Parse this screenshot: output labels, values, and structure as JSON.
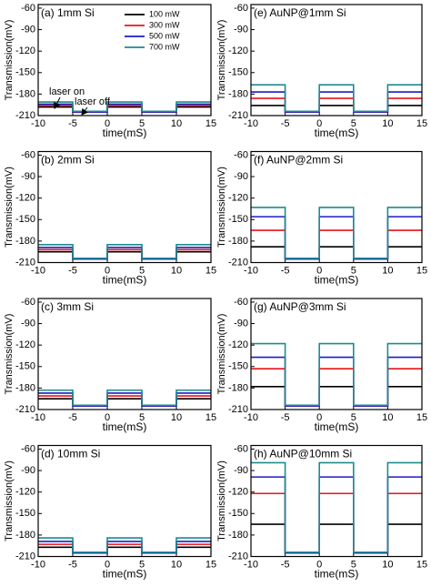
{
  "chart_data": [
    {
      "type": "line",
      "title": "(a) 1mm Si",
      "xlabel": "time(mS)",
      "ylabel": "Transmission(mV)",
      "legend": true,
      "annotations": [
        "laser on",
        "laser off"
      ],
      "x": [
        -10,
        -5,
        -5,
        0,
        0,
        5,
        5,
        10,
        10,
        15
      ],
      "xlim": [
        -10,
        15
      ],
      "ylim": [
        -210,
        -55
      ],
      "xticks": [
        -10,
        -5,
        0,
        5,
        10,
        15
      ],
      "yticks": [
        -60,
        -90,
        -120,
        -150,
        -180,
        -210
      ],
      "series": [
        {
          "name": "100 mW",
          "color": "#000000",
          "values": [
            -198,
            -198,
            -205,
            -205,
            -198,
            -198,
            -205,
            -205,
            -198,
            -198
          ]
        },
        {
          "name": "300 mW",
          "color": "#e8141b",
          "values": [
            -196,
            -196,
            -205,
            -205,
            -196,
            -196,
            -205,
            -205,
            -196,
            -196
          ]
        },
        {
          "name": "500 mW",
          "color": "#1c1cc8",
          "values": [
            -194,
            -194,
            -205,
            -205,
            -194,
            -194,
            -205,
            -205,
            -194,
            -194
          ]
        },
        {
          "name": "700 mW",
          "color": "#1d8c8c",
          "values": [
            -191,
            -191,
            -204,
            -204,
            -191,
            -191,
            -204,
            -204,
            -191,
            -191
          ]
        }
      ]
    },
    {
      "type": "line",
      "title": "(b) 2mm Si",
      "xlabel": "time(mS)",
      "ylabel": "Transmission(mV)",
      "x": [
        -10,
        -5,
        -5,
        0,
        0,
        5,
        5,
        10,
        10,
        15
      ],
      "xlim": [
        -10,
        15
      ],
      "ylim": [
        -210,
        -55
      ],
      "xticks": [
        -10,
        -5,
        0,
        5,
        10,
        15
      ],
      "yticks": [
        -60,
        -90,
        -120,
        -150,
        -180,
        -210
      ],
      "series": [
        {
          "color": "#000000",
          "values": [
            -195,
            -195,
            -205,
            -205,
            -195,
            -195,
            -205,
            -205,
            -195,
            -195
          ]
        },
        {
          "color": "#e8141b",
          "values": [
            -192,
            -192,
            -205,
            -205,
            -192,
            -192,
            -205,
            -205,
            -192,
            -192
          ]
        },
        {
          "color": "#1c1cc8",
          "values": [
            -189,
            -189,
            -205,
            -205,
            -189,
            -189,
            -205,
            -205,
            -189,
            -189
          ]
        },
        {
          "color": "#1d8c8c",
          "values": [
            -185,
            -185,
            -204,
            -204,
            -185,
            -185,
            -204,
            -204,
            -185,
            -185
          ]
        }
      ]
    },
    {
      "type": "line",
      "title": "(c) 3mm Si",
      "xlabel": "time(mS)",
      "ylabel": "Transmission(mV)",
      "x": [
        -10,
        -5,
        -5,
        0,
        0,
        5,
        5,
        10,
        10,
        15
      ],
      "xlim": [
        -10,
        15
      ],
      "ylim": [
        -210,
        -55
      ],
      "xticks": [
        -10,
        -5,
        0,
        5,
        10,
        15
      ],
      "yticks": [
        -60,
        -90,
        -120,
        -150,
        -180,
        -210
      ],
      "series": [
        {
          "color": "#000000",
          "values": [
            -195,
            -195,
            -205,
            -205,
            -195,
            -195,
            -205,
            -205,
            -195,
            -195
          ]
        },
        {
          "color": "#e8141b",
          "values": [
            -191,
            -191,
            -205,
            -205,
            -191,
            -191,
            -205,
            -205,
            -191,
            -191
          ]
        },
        {
          "color": "#1c1cc8",
          "values": [
            -187,
            -187,
            -205,
            -205,
            -187,
            -187,
            -205,
            -205,
            -187,
            -187
          ]
        },
        {
          "color": "#1d8c8c",
          "values": [
            -183,
            -183,
            -204,
            -204,
            -183,
            -183,
            -204,
            -204,
            -183,
            -183
          ]
        }
      ]
    },
    {
      "type": "line",
      "title": "(d) 10mm Si",
      "xlabel": "time(mS)",
      "ylabel": "Transmission(mV)",
      "x": [
        -10,
        -5,
        -5,
        0,
        0,
        5,
        5,
        10,
        10,
        15
      ],
      "xlim": [
        -10,
        15
      ],
      "ylim": [
        -210,
        -55
      ],
      "xticks": [
        -10,
        -5,
        0,
        5,
        10,
        15
      ],
      "yticks": [
        -60,
        -90,
        -120,
        -150,
        -180,
        -210
      ],
      "series": [
        {
          "color": "#000000",
          "values": [
            -197,
            -197,
            -205,
            -205,
            -197,
            -197,
            -205,
            -205,
            -197,
            -197
          ]
        },
        {
          "color": "#e8141b",
          "values": [
            -193,
            -193,
            -205,
            -205,
            -193,
            -193,
            -205,
            -205,
            -193,
            -193
          ]
        },
        {
          "color": "#1c1cc8",
          "values": [
            -189,
            -189,
            -205,
            -205,
            -189,
            -189,
            -205,
            -205,
            -189,
            -189
          ]
        },
        {
          "color": "#1d8c8c",
          "values": [
            -184,
            -184,
            -204,
            -204,
            -184,
            -184,
            -204,
            -204,
            -184,
            -184
          ]
        }
      ]
    },
    {
      "type": "line",
      "title": "(e) AuNP@1mm Si",
      "xlabel": "time(mS)",
      "ylabel": "Transmission(mV)",
      "x": [
        -10,
        -5,
        -5,
        0,
        0,
        5,
        5,
        10,
        10,
        15
      ],
      "xlim": [
        -10,
        15
      ],
      "ylim": [
        -210,
        -55
      ],
      "xticks": [
        -10,
        -5,
        0,
        5,
        10,
        15
      ],
      "yticks": [
        -60,
        -90,
        -120,
        -150,
        -180,
        -210
      ],
      "series": [
        {
          "color": "#000000",
          "values": [
            -196,
            -196,
            -205,
            -205,
            -196,
            -196,
            -205,
            -205,
            -196,
            -196
          ]
        },
        {
          "color": "#e8141b",
          "values": [
            -186,
            -186,
            -205,
            -205,
            -186,
            -186,
            -205,
            -205,
            -186,
            -186
          ]
        },
        {
          "color": "#1c1cc8",
          "values": [
            -177,
            -177,
            -205,
            -205,
            -177,
            -177,
            -205,
            -205,
            -177,
            -177
          ]
        },
        {
          "color": "#1d8c8c",
          "values": [
            -167,
            -167,
            -204,
            -204,
            -167,
            -167,
            -204,
            -204,
            -167,
            -167
          ]
        }
      ]
    },
    {
      "type": "line",
      "title": "(f) AuNP@2mm Si",
      "xlabel": "time(mS)",
      "ylabel": "Transmission(mV)",
      "x": [
        -10,
        -5,
        -5,
        0,
        0,
        5,
        5,
        10,
        10,
        15
      ],
      "xlim": [
        -10,
        15
      ],
      "ylim": [
        -210,
        -55
      ],
      "xticks": [
        -10,
        -5,
        0,
        5,
        10,
        15
      ],
      "yticks": [
        -60,
        -90,
        -120,
        -150,
        -180,
        -210
      ],
      "series": [
        {
          "color": "#000000",
          "values": [
            -188,
            -188,
            -205,
            -205,
            -188,
            -188,
            -205,
            -205,
            -188,
            -188
          ]
        },
        {
          "color": "#e8141b",
          "values": [
            -165,
            -165,
            -205,
            -205,
            -165,
            -165,
            -205,
            -205,
            -165,
            -165
          ]
        },
        {
          "color": "#1c1cc8",
          "values": [
            -146,
            -146,
            -205,
            -205,
            -146,
            -146,
            -205,
            -205,
            -146,
            -146
          ]
        },
        {
          "color": "#1d8c8c",
          "values": [
            -133,
            -133,
            -204,
            -204,
            -133,
            -133,
            -204,
            -204,
            -133,
            -133
          ]
        }
      ]
    },
    {
      "type": "line",
      "title": "(g) AuNP@3mm Si",
      "xlabel": "time(mS)",
      "ylabel": "Transmission(mV)",
      "x": [
        -10,
        -5,
        -5,
        0,
        0,
        5,
        5,
        10,
        10,
        15
      ],
      "xlim": [
        -10,
        15
      ],
      "ylim": [
        -210,
        -55
      ],
      "xticks": [
        -10,
        -5,
        0,
        5,
        10,
        15
      ],
      "yticks": [
        -60,
        -90,
        -120,
        -150,
        -180,
        -210
      ],
      "series": [
        {
          "color": "#000000",
          "values": [
            -178,
            -178,
            -205,
            -205,
            -178,
            -178,
            -205,
            -205,
            -178,
            -178
          ]
        },
        {
          "color": "#e8141b",
          "values": [
            -153,
            -153,
            -205,
            -205,
            -153,
            -153,
            -205,
            -205,
            -153,
            -153
          ]
        },
        {
          "color": "#1c1cc8",
          "values": [
            -137,
            -137,
            -205,
            -205,
            -137,
            -137,
            -205,
            -205,
            -137,
            -137
          ]
        },
        {
          "color": "#1d8c8c",
          "values": [
            -118,
            -118,
            -204,
            -204,
            -118,
            -118,
            -204,
            -204,
            -118,
            -118
          ]
        }
      ]
    },
    {
      "type": "line",
      "title": "(h) AuNP@10mm Si",
      "xlabel": "time(mS)",
      "ylabel": "Transmission(mV)",
      "x": [
        -10,
        -5,
        -5,
        0,
        0,
        5,
        5,
        10,
        10,
        15
      ],
      "xlim": [
        -10,
        15
      ],
      "ylim": [
        -210,
        -55
      ],
      "xticks": [
        -10,
        -5,
        0,
        5,
        10,
        15
      ],
      "yticks": [
        -60,
        -90,
        -120,
        -150,
        -180,
        -210
      ],
      "series": [
        {
          "color": "#000000",
          "values": [
            -165,
            -165,
            -205,
            -205,
            -165,
            -165,
            -205,
            -205,
            -165,
            -165
          ]
        },
        {
          "color": "#e8141b",
          "values": [
            -122,
            -122,
            -205,
            -205,
            -122,
            -122,
            -205,
            -205,
            -122,
            -122
          ]
        },
        {
          "color": "#1c1cc8",
          "values": [
            -99,
            -99,
            -205,
            -205,
            -99,
            -99,
            -205,
            -205,
            -99,
            -99
          ]
        },
        {
          "color": "#1d8c8c",
          "values": [
            -79,
            -79,
            -204,
            -204,
            -79,
            -79,
            -204,
            -204,
            -79,
            -79
          ]
        }
      ]
    }
  ]
}
